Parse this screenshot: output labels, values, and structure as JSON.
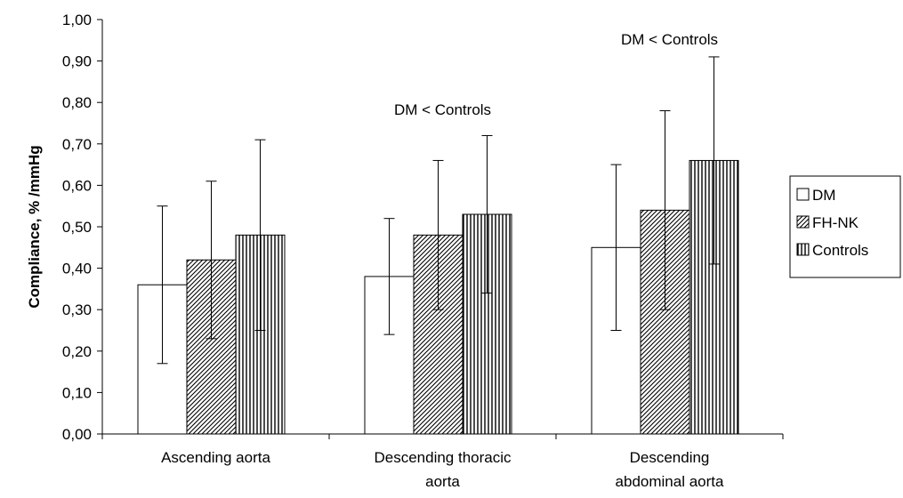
{
  "chart_data": {
    "type": "bar",
    "ylabel": "Compliance, % /mmHg",
    "xlabel": "",
    "ylim": [
      0,
      1.0
    ],
    "ytick_step": 0.1,
    "ytick_labels": [
      "0,00",
      "0,10",
      "0,20",
      "0,30",
      "0,40",
      "0,50",
      "0,60",
      "0,70",
      "0,80",
      "0,90",
      "1,00"
    ],
    "grid": false,
    "legend_position": "right",
    "categories": [
      [
        "Ascending aorta"
      ],
      [
        "Descending thoracic",
        "aorta"
      ],
      [
        "Descending",
        "abdominal aorta"
      ]
    ],
    "series": [
      {
        "name": "DM",
        "pattern": "none",
        "values": [
          0.36,
          0.38,
          0.45
        ],
        "err_low": [
          0.17,
          0.24,
          0.25
        ],
        "err_high": [
          0.55,
          0.52,
          0.65
        ]
      },
      {
        "name": "FH-NK",
        "pattern": "diagonal",
        "values": [
          0.42,
          0.48,
          0.54
        ],
        "err_low": [
          0.23,
          0.3,
          0.3
        ],
        "err_high": [
          0.61,
          0.66,
          0.78
        ]
      },
      {
        "name": "Controls",
        "pattern": "vertical",
        "values": [
          0.48,
          0.53,
          0.66
        ],
        "err_low": [
          0.25,
          0.34,
          0.41
        ],
        "err_high": [
          0.71,
          0.72,
          0.91
        ]
      }
    ],
    "annotations": [
      {
        "text": "DM < Controls",
        "category": 1,
        "y": 0.77
      },
      {
        "text": "DM < Controls",
        "category": 2,
        "y": 0.94
      }
    ]
  }
}
